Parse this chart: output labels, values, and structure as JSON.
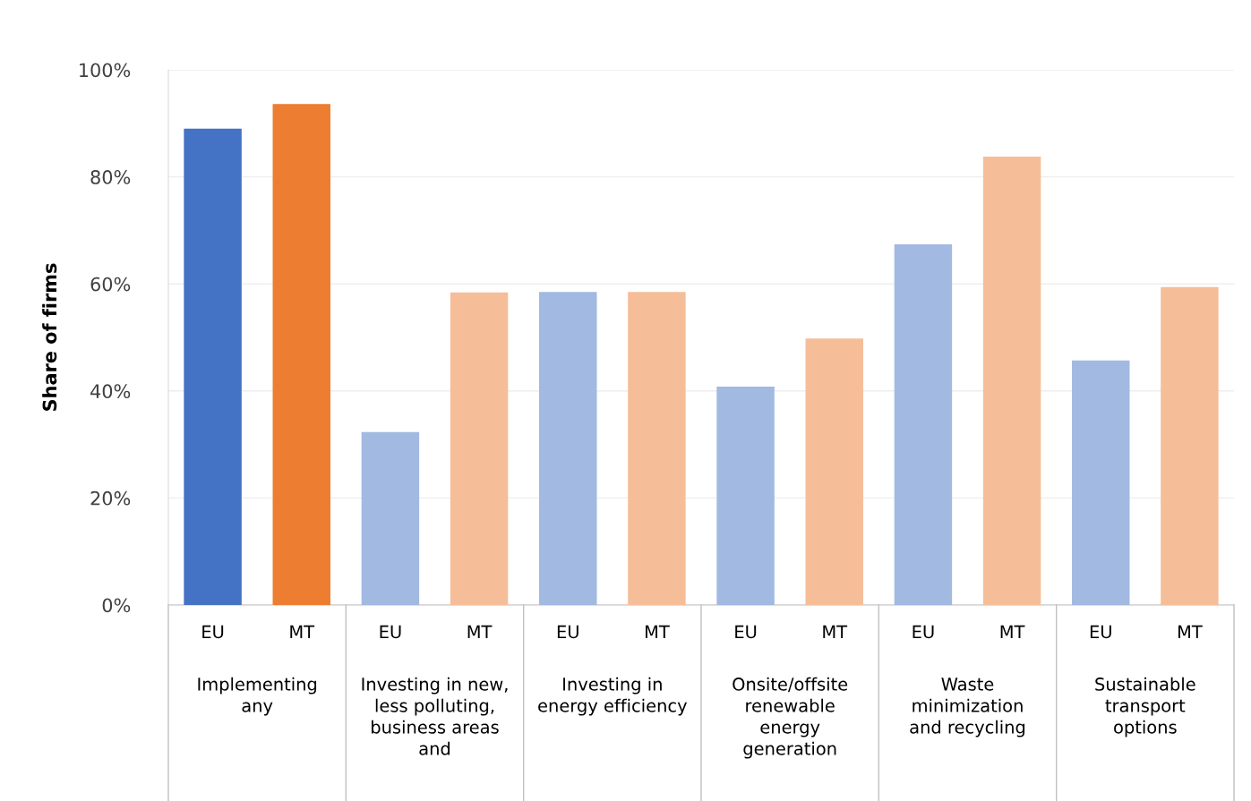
{
  "chart_data": {
    "type": "bar",
    "ylabel": "Share of firms",
    "categories": [
      "EU",
      "MT",
      "EU",
      "MT",
      "EU",
      "MT",
      "EU",
      "MT",
      "EU",
      "MT",
      "EU",
      "MT"
    ],
    "values": [
      89,
      93.6,
      32.3,
      58.4,
      58.5,
      58.5,
      40.8,
      49.8,
      67.4,
      83.8,
      45.7,
      59.4
    ],
    "colors": [
      "#4472c4",
      "#ed7d31",
      "#a2b9e1",
      "#f5be98",
      "#a2b9e1",
      "#f5be98",
      "#a2b9e1",
      "#f5be98",
      "#a2b9e1",
      "#f5be98",
      "#a2b9e1",
      "#f5be98"
    ],
    "annotations": [
      "Implementing\nany",
      "Investing in new,\nless polluting,\nbusiness areas\nand",
      "Investing in\nenergy efficiency",
      "Onsite/offsite\nrenewable\nenergy\ngeneration",
      "Waste\nminimization\nand recycling",
      "Sustainable\ntransport\noptions"
    ],
    "ylim": [
      0,
      100
    ],
    "yticks": [
      {
        "value": 0,
        "label": "0%"
      },
      {
        "value": 20,
        "label": "20%"
      },
      {
        "value": 40,
        "label": "40%"
      },
      {
        "value": 60,
        "label": "60%"
      },
      {
        "value": 80,
        "label": "80%"
      },
      {
        "value": 100,
        "label": "100%"
      }
    ],
    "grid": "y",
    "legend": false
  }
}
